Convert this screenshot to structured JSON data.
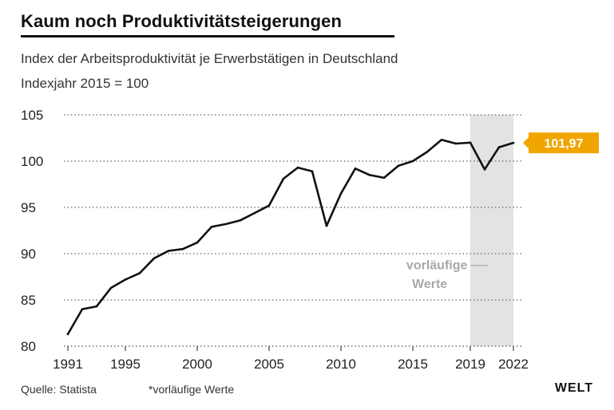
{
  "header": {
    "title": "Kaum noch Produktivitätsteigerungen",
    "subtitle": "Index der Arbeitsproduktivität je Erwerbstätigen in Deutschland",
    "subtitle2": "Indexjahr 2015 = 100"
  },
  "footer": {
    "source": "Quelle: Statista",
    "note": "*vorläufige Werte",
    "logo": "WELT"
  },
  "colors": {
    "line": "#111111",
    "grid": "#666666",
    "shade": "#e3e3e3",
    "callout_bg": "#f0a500",
    "callout_text": "#ffffff",
    "shade_label": "#a8a8a8"
  },
  "chart_data": {
    "type": "line",
    "title": "Kaum noch Produktivitätsteigerungen",
    "subtitle": "Index der Arbeitsproduktivität je Erwerbstätigen in Deutschland",
    "ylabel": "",
    "xlabel": "",
    "ylim": [
      80,
      105
    ],
    "xlim": [
      1991,
      2022
    ],
    "yticks": [
      80,
      85,
      90,
      95,
      100,
      105
    ],
    "xtick_labels": [
      "1991",
      "1995",
      "2000",
      "2005",
      "2010",
      "2015",
      "2019",
      "2022"
    ],
    "xticks": [
      1991,
      1995,
      2000,
      2005,
      2010,
      2015,
      2019,
      2022
    ],
    "grid": "horizontal dotted",
    "preliminary_range": [
      2019,
      2022
    ],
    "preliminary_label": [
      "vorläufige",
      "Werte"
    ],
    "end_label": "101,97",
    "series": [
      {
        "x": [
          1991,
          1992,
          1993,
          1994,
          1995,
          1996,
          1997,
          1998,
          1999,
          2000,
          2001,
          2002,
          2003,
          2004,
          2005,
          2006,
          2007,
          2008,
          2009,
          2010,
          2011,
          2012,
          2013,
          2014,
          2015,
          2016,
          2017,
          2018,
          2019,
          2020,
          2021,
          2022
        ],
        "values": [
          81.3,
          84.0,
          84.3,
          86.3,
          87.2,
          87.9,
          89.5,
          90.3,
          90.5,
          91.2,
          92.9,
          93.2,
          93.6,
          94.4,
          95.2,
          98.1,
          99.3,
          98.9,
          93.0,
          96.5,
          99.2,
          98.5,
          98.2,
          99.5,
          100.0,
          101.0,
          102.3,
          101.9,
          102.0,
          99.1,
          101.5,
          101.97
        ]
      }
    ]
  }
}
